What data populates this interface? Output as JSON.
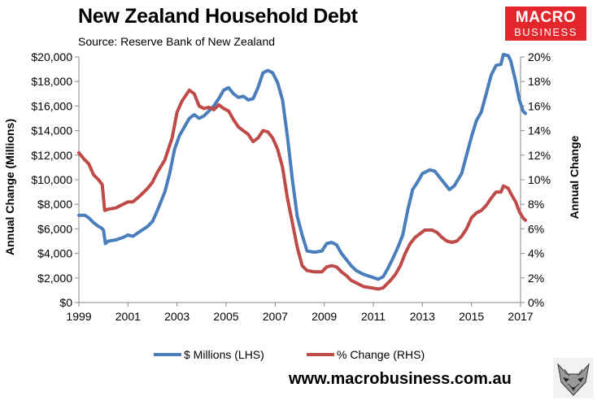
{
  "chart_data": {
    "type": "line",
    "title": "New Zealand Household Debt",
    "subtitle": "Source: Reserve Bank of New Zealand",
    "ylabel_left": "Annual Change (Millions)",
    "ylabel_right": "Annual Change",
    "xlim": [
      1999,
      2017
    ],
    "ylim_left": [
      0,
      20000
    ],
    "ylim_right": [
      0,
      20
    ],
    "x_ticks": [
      1999,
      2001,
      2003,
      2005,
      2007,
      2009,
      2011,
      2013,
      2015,
      2017
    ],
    "x_tick_labels": [
      "1999",
      "2001",
      "2003",
      "2005",
      "2007",
      "2009",
      "2011",
      "2013",
      "2015",
      "2017"
    ],
    "y_left_ticks": [
      0,
      2000,
      4000,
      6000,
      8000,
      10000,
      12000,
      14000,
      16000,
      18000,
      20000
    ],
    "y_left_tick_labels": [
      "$0",
      "$2,000",
      "$4,000",
      "$6,000",
      "$8,000",
      "$10,000",
      "$12,000",
      "$14,000",
      "$16,000",
      "$18,000",
      "$20,000"
    ],
    "y_right_ticks": [
      0,
      2,
      4,
      6,
      8,
      10,
      12,
      14,
      16,
      18,
      20
    ],
    "y_right_tick_labels": [
      "0%",
      "2%",
      "4%",
      "6%",
      "8%",
      "10%",
      "12%",
      "14%",
      "16%",
      "18%",
      "20%"
    ],
    "grid": false,
    "legend_position": "bottom",
    "series": [
      {
        "name": "$ Millions (LHS)",
        "axis": "left",
        "color": "#4a7ebb",
        "points": [
          [
            1999.0,
            7100
          ],
          [
            1999.25,
            7100
          ],
          [
            1999.4,
            6900
          ],
          [
            1999.6,
            6500
          ],
          [
            1999.8,
            6200
          ],
          [
            1999.9,
            6100
          ],
          [
            2000.0,
            5900
          ],
          [
            2000.08,
            4800
          ],
          [
            2000.2,
            5000
          ],
          [
            2000.5,
            5100
          ],
          [
            2000.8,
            5300
          ],
          [
            2001.0,
            5500
          ],
          [
            2001.2,
            5400
          ],
          [
            2001.5,
            5800
          ],
          [
            2001.8,
            6200
          ],
          [
            2002.0,
            6600
          ],
          [
            2002.2,
            7500
          ],
          [
            2002.5,
            9000
          ],
          [
            2002.7,
            10500
          ],
          [
            2002.9,
            12500
          ],
          [
            2003.1,
            13600
          ],
          [
            2003.3,
            14300
          ],
          [
            2003.5,
            15000
          ],
          [
            2003.7,
            15300
          ],
          [
            2003.9,
            15000
          ],
          [
            2004.1,
            15200
          ],
          [
            2004.3,
            15600
          ],
          [
            2004.5,
            16000
          ],
          [
            2004.7,
            16600
          ],
          [
            2004.9,
            17300
          ],
          [
            2005.1,
            17500
          ],
          [
            2005.3,
            17000
          ],
          [
            2005.5,
            16700
          ],
          [
            2005.7,
            16800
          ],
          [
            2005.9,
            16500
          ],
          [
            2006.1,
            16600
          ],
          [
            2006.3,
            17500
          ],
          [
            2006.5,
            18700
          ],
          [
            2006.7,
            18900
          ],
          [
            2006.9,
            18700
          ],
          [
            2007.1,
            17900
          ],
          [
            2007.3,
            16500
          ],
          [
            2007.5,
            13500
          ],
          [
            2007.7,
            10000
          ],
          [
            2007.9,
            7000
          ],
          [
            2008.1,
            5500
          ],
          [
            2008.3,
            4200
          ],
          [
            2008.6,
            4100
          ],
          [
            2008.9,
            4200
          ],
          [
            2009.1,
            4800
          ],
          [
            2009.3,
            4900
          ],
          [
            2009.5,
            4700
          ],
          [
            2009.7,
            4000
          ],
          [
            2009.9,
            3500
          ],
          [
            2010.1,
            3000
          ],
          [
            2010.3,
            2600
          ],
          [
            2010.6,
            2300
          ],
          [
            2010.9,
            2100
          ],
          [
            2011.2,
            1900
          ],
          [
            2011.4,
            2100
          ],
          [
            2011.6,
            2800
          ],
          [
            2011.8,
            3600
          ],
          [
            2012.0,
            4500
          ],
          [
            2012.2,
            5500
          ],
          [
            2012.4,
            7500
          ],
          [
            2012.6,
            9200
          ],
          [
            2012.8,
            9800
          ],
          [
            2013.0,
            10500
          ],
          [
            2013.3,
            10800
          ],
          [
            2013.5,
            10700
          ],
          [
            2013.7,
            10200
          ],
          [
            2013.9,
            9700
          ],
          [
            2014.1,
            9200
          ],
          [
            2014.3,
            9500
          ],
          [
            2014.6,
            10500
          ],
          [
            2014.8,
            12000
          ],
          [
            2015.0,
            13500
          ],
          [
            2015.2,
            14800
          ],
          [
            2015.4,
            15500
          ],
          [
            2015.6,
            17000
          ],
          [
            2015.8,
            18500
          ],
          [
            2016.0,
            19300
          ],
          [
            2016.2,
            19400
          ],
          [
            2016.3,
            20200
          ],
          [
            2016.5,
            20100
          ],
          [
            2016.6,
            19700
          ],
          [
            2016.8,
            18000
          ],
          [
            2016.95,
            16500
          ],
          [
            2017.1,
            15600
          ],
          [
            2017.2,
            15400
          ]
        ]
      },
      {
        "name": "% Change (RHS)",
        "axis": "right",
        "color": "#be4b48",
        "points": [
          [
            1999.0,
            12.2
          ],
          [
            1999.2,
            11.7
          ],
          [
            1999.4,
            11.3
          ],
          [
            1999.6,
            10.4
          ],
          [
            1999.8,
            10.0
          ],
          [
            1999.95,
            9.6
          ],
          [
            2000.05,
            7.5
          ],
          [
            2000.2,
            7.6
          ],
          [
            2000.5,
            7.7
          ],
          [
            2000.8,
            8.0
          ],
          [
            2001.0,
            8.2
          ],
          [
            2001.2,
            8.2
          ],
          [
            2001.5,
            8.7
          ],
          [
            2001.8,
            9.3
          ],
          [
            2002.0,
            9.8
          ],
          [
            2002.2,
            10.6
          ],
          [
            2002.5,
            11.6
          ],
          [
            2002.8,
            13.4
          ],
          [
            2003.0,
            15.5
          ],
          [
            2003.2,
            16.4
          ],
          [
            2003.5,
            17.3
          ],
          [
            2003.7,
            17.0
          ],
          [
            2003.9,
            16.0
          ],
          [
            2004.1,
            15.8
          ],
          [
            2004.3,
            15.9
          ],
          [
            2004.5,
            15.7
          ],
          [
            2004.7,
            16.1
          ],
          [
            2004.9,
            15.8
          ],
          [
            2005.1,
            15.6
          ],
          [
            2005.3,
            14.9
          ],
          [
            2005.5,
            14.3
          ],
          [
            2005.7,
            14.0
          ],
          [
            2005.9,
            13.7
          ],
          [
            2006.1,
            13.1
          ],
          [
            2006.3,
            13.4
          ],
          [
            2006.5,
            14.0
          ],
          [
            2006.7,
            13.9
          ],
          [
            2006.9,
            13.4
          ],
          [
            2007.1,
            12.5
          ],
          [
            2007.3,
            11.0
          ],
          [
            2007.5,
            8.5
          ],
          [
            2007.7,
            6.5
          ],
          [
            2007.9,
            4.5
          ],
          [
            2008.1,
            3.0
          ],
          [
            2008.3,
            2.6
          ],
          [
            2008.6,
            2.5
          ],
          [
            2008.9,
            2.5
          ],
          [
            2009.1,
            2.9
          ],
          [
            2009.3,
            3.0
          ],
          [
            2009.5,
            2.9
          ],
          [
            2009.7,
            2.5
          ],
          [
            2009.9,
            2.2
          ],
          [
            2010.1,
            1.8
          ],
          [
            2010.3,
            1.6
          ],
          [
            2010.6,
            1.3
          ],
          [
            2010.9,
            1.2
          ],
          [
            2011.2,
            1.1
          ],
          [
            2011.4,
            1.2
          ],
          [
            2011.7,
            1.8
          ],
          [
            2011.9,
            2.3
          ],
          [
            2012.1,
            3.0
          ],
          [
            2012.3,
            4.0
          ],
          [
            2012.5,
            4.8
          ],
          [
            2012.7,
            5.3
          ],
          [
            2012.9,
            5.6
          ],
          [
            2013.1,
            5.9
          ],
          [
            2013.4,
            5.9
          ],
          [
            2013.6,
            5.7
          ],
          [
            2013.8,
            5.3
          ],
          [
            2014.0,
            5.0
          ],
          [
            2014.2,
            4.9
          ],
          [
            2014.4,
            5.0
          ],
          [
            2014.6,
            5.4
          ],
          [
            2014.8,
            6.0
          ],
          [
            2015.0,
            6.9
          ],
          [
            2015.2,
            7.3
          ],
          [
            2015.4,
            7.5
          ],
          [
            2015.6,
            7.9
          ],
          [
            2015.8,
            8.5
          ],
          [
            2016.0,
            9.0
          ],
          [
            2016.2,
            9.0
          ],
          [
            2016.3,
            9.5
          ],
          [
            2016.5,
            9.3
          ],
          [
            2016.6,
            8.9
          ],
          [
            2016.8,
            8.2
          ],
          [
            2016.95,
            7.4
          ],
          [
            2017.1,
            6.9
          ],
          [
            2017.2,
            6.7
          ]
        ]
      }
    ]
  },
  "logo": {
    "line1": "MACRO",
    "line2": "BUSINESS"
  },
  "footer": {
    "url": "www.macrobusiness.com.au"
  }
}
